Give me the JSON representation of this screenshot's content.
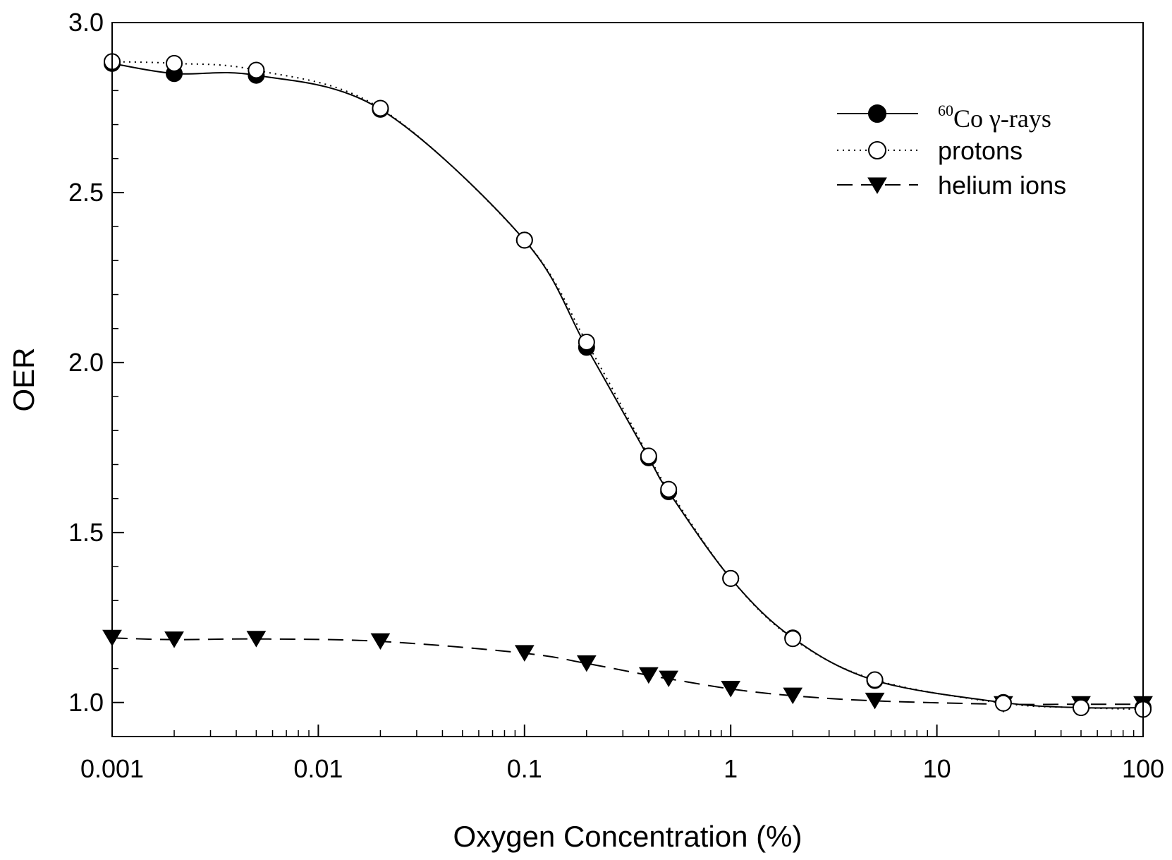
{
  "chart_data": {
    "type": "line",
    "title": "",
    "xlabel": "Oxygen Concentration (%)",
    "ylabel": "OER",
    "xscale": "log",
    "xlim": [
      0.001,
      100
    ],
    "ylim": [
      0.9,
      3.0
    ],
    "xticks": [
      0.001,
      0.01,
      0.1,
      1,
      10,
      100
    ],
    "xtick_labels": [
      "0.001",
      "0.01",
      "0.1",
      "1",
      "10",
      "100"
    ],
    "yticks": [
      1.0,
      1.5,
      2.0,
      2.5,
      3.0
    ],
    "ytick_labels": [
      "1.0",
      "1.5",
      "2.0",
      "2.5",
      "3.0"
    ],
    "grid": false,
    "legend_position": "top-right",
    "series": [
      {
        "name": "60Co γ-rays",
        "legend_superscript": "60",
        "legend_text": "Co γ-rays",
        "marker": "filled-circle",
        "line_style": "solid",
        "x": [
          0.001,
          0.002,
          0.005,
          0.02,
          0.1,
          0.2,
          0.4,
          0.5,
          1,
          2,
          5,
          21,
          50,
          100
        ],
        "y": [
          2.88,
          2.85,
          2.845,
          2.745,
          2.36,
          2.045,
          1.72,
          1.62,
          1.365,
          1.19,
          1.065,
          1.0,
          0.985,
          0.985
        ]
      },
      {
        "name": "protons",
        "marker": "open-circle",
        "line_style": "dotted",
        "x": [
          0.001,
          0.002,
          0.005,
          0.02,
          0.1,
          0.2,
          0.4,
          0.5,
          1,
          2,
          5,
          21,
          50,
          100
        ],
        "y": [
          2.885,
          2.88,
          2.86,
          2.748,
          2.36,
          2.06,
          1.725,
          1.627,
          1.365,
          1.188,
          1.067,
          0.998,
          0.985,
          0.98
        ]
      },
      {
        "name": "helium ions",
        "marker": "filled-triangle-down",
        "line_style": "dashed",
        "x": [
          0.001,
          0.002,
          0.005,
          0.02,
          0.1,
          0.2,
          0.4,
          0.5,
          1,
          2,
          5,
          21,
          50,
          100
        ],
        "y": [
          1.19,
          1.185,
          1.187,
          1.18,
          1.145,
          1.115,
          1.08,
          1.07,
          1.04,
          1.02,
          1.005,
          0.995,
          0.995,
          0.995
        ]
      }
    ]
  }
}
